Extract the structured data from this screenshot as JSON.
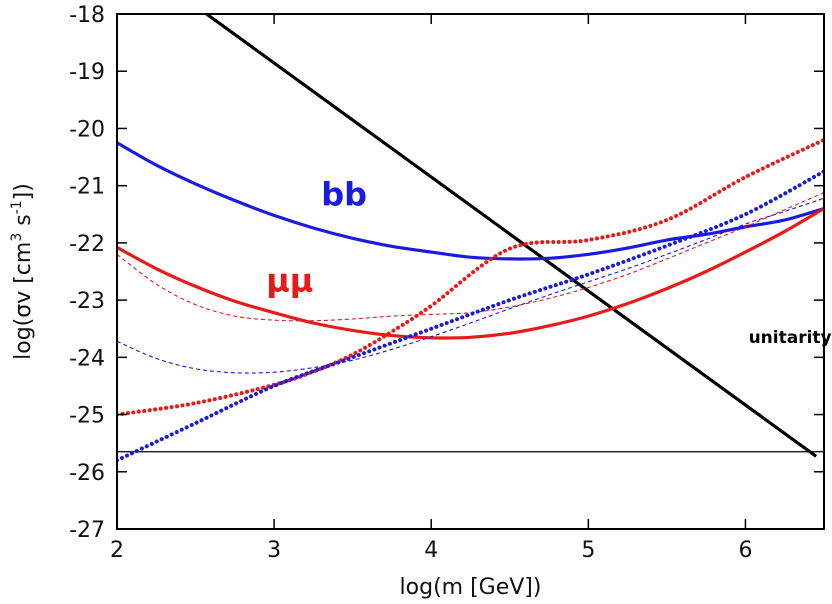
{
  "chart_data": {
    "type": "line",
    "title": "",
    "xlabel": "log(m [GeV])",
    "ylabel": {
      "prefix": "log(σv [cm",
      "sup1": "3",
      "mid": " s",
      "sup2": "-1",
      "suffix": "])"
    },
    "xlim": [
      2,
      6.5
    ],
    "ylim": [
      -27,
      -18
    ],
    "xticks": [
      {
        "value": 2,
        "label": "2"
      },
      {
        "value": 3,
        "label": "3"
      },
      {
        "value": 4,
        "label": "4"
      },
      {
        "value": 5,
        "label": "5"
      },
      {
        "value": 6,
        "label": "6"
      }
    ],
    "yticks": [
      {
        "value": -18,
        "label": "-18"
      },
      {
        "value": -19,
        "label": "-19"
      },
      {
        "value": -20,
        "label": "-20"
      },
      {
        "value": -21,
        "label": "-21"
      },
      {
        "value": -22,
        "label": "-22"
      },
      {
        "value": -23,
        "label": "-23"
      },
      {
        "value": -24,
        "label": "-24"
      },
      {
        "value": -25,
        "label": "-25"
      },
      {
        "value": -26,
        "label": "-26"
      },
      {
        "value": -27,
        "label": "-27"
      }
    ],
    "grid": false,
    "series": [
      {
        "name": "unitarity",
        "color": "#000000",
        "style": "solid-thick",
        "x": [
          2.57,
          6.45
        ],
        "y": [
          -18.0,
          -25.73
        ]
      },
      {
        "name": "reference-level",
        "color": "#000000",
        "style": "solid-thin",
        "x": [
          2.0,
          6.5
        ],
        "y": [
          -25.65,
          -25.65
        ]
      },
      {
        "name": "bb",
        "color": "#1a1ae0",
        "style": "solid-thick",
        "x": [
          2.0,
          2.25,
          2.5,
          2.75,
          3.0,
          3.25,
          3.5,
          3.75,
          4.0,
          4.25,
          4.5,
          4.75,
          5.0,
          5.25,
          5.5,
          5.75,
          6.0,
          6.25,
          6.5
        ],
        "y": [
          -20.25,
          -20.64,
          -20.97,
          -21.26,
          -21.52,
          -21.74,
          -21.92,
          -22.06,
          -22.16,
          -22.25,
          -22.28,
          -22.27,
          -22.2,
          -22.09,
          -21.95,
          -21.85,
          -21.72,
          -21.6,
          -21.4
        ]
      },
      {
        "name": "μμ",
        "color": "#e81a1a",
        "style": "solid-thick",
        "x": [
          2.0,
          2.25,
          2.5,
          2.75,
          3.0,
          3.25,
          3.5,
          3.75,
          4.0,
          4.25,
          4.5,
          4.75,
          5.0,
          5.25,
          5.5,
          5.75,
          6.0,
          6.25,
          6.5
        ],
        "y": [
          -22.08,
          -22.45,
          -22.76,
          -23.02,
          -23.22,
          -23.4,
          -23.53,
          -23.62,
          -23.66,
          -23.65,
          -23.58,
          -23.45,
          -23.28,
          -23.06,
          -22.8,
          -22.5,
          -22.16,
          -21.8,
          -21.4
        ]
      },
      {
        "name": "μμ-dashed",
        "color": "#e81a1a",
        "style": "dashed-thin",
        "x": [
          2.0,
          2.25,
          2.5,
          2.75,
          3.0,
          3.25,
          3.5,
          3.75,
          4.0,
          4.25,
          4.5,
          4.75,
          5.0,
          5.25,
          5.5,
          5.75,
          6.0,
          6.25,
          6.5
        ],
        "y": [
          -22.2,
          -22.72,
          -23.08,
          -23.28,
          -23.35,
          -23.36,
          -23.33,
          -23.28,
          -23.25,
          -23.22,
          -23.12,
          -22.97,
          -22.78,
          -22.55,
          -22.28,
          -22.0,
          -21.72,
          -21.42,
          -21.12
        ]
      },
      {
        "name": "bb-dashed",
        "color": "#1a1ae0",
        "style": "dashed-thin",
        "x": [
          2.0,
          2.25,
          2.5,
          2.75,
          3.0,
          3.25,
          3.5,
          3.75,
          4.0,
          4.25,
          4.5,
          4.75,
          5.0,
          5.25,
          5.5,
          5.75,
          6.0,
          6.25,
          6.5
        ],
        "y": [
          -23.72,
          -24.02,
          -24.2,
          -24.27,
          -24.26,
          -24.18,
          -24.05,
          -23.86,
          -23.64,
          -23.4,
          -23.15,
          -22.91,
          -22.68,
          -22.45,
          -22.2,
          -21.94,
          -21.67,
          -21.45,
          -21.22
        ]
      },
      {
        "name": "μμ-dotted",
        "color": "#e81a1a",
        "style": "dotted-thick",
        "x": [
          2.0,
          2.5,
          3.0,
          3.25,
          3.5,
          3.75,
          4.0,
          4.5,
          5.0,
          5.5,
          6.0,
          6.5
        ],
        "y": [
          -25.0,
          -24.8,
          -24.48,
          -24.25,
          -23.95,
          -23.55,
          -23.1,
          -22.1,
          -21.95,
          -21.6,
          -20.85,
          -20.2
        ]
      },
      {
        "name": "bb-dotted",
        "color": "#1a1ae0",
        "style": "dotted-thick",
        "x": [
          2.0,
          2.5,
          3.0,
          3.5,
          4.0,
          4.5,
          5.0,
          5.5,
          6.0,
          6.5
        ],
        "y": [
          -25.8,
          -25.15,
          -24.5,
          -24.0,
          -23.5,
          -23.0,
          -22.55,
          -22.05,
          -21.5,
          -20.75
        ]
      }
    ],
    "annotations": [
      {
        "text": "bb",
        "x": 3.3,
        "y": -21.35,
        "color": "#1a1ae0",
        "size": "large"
      },
      {
        "text": "μμ",
        "x": 2.95,
        "y": -22.85,
        "color": "#e81a1a",
        "size": "large"
      },
      {
        "text": "unitarity",
        "x": 6.02,
        "y": -23.75,
        "color": "#000000",
        "size": "small"
      }
    ]
  }
}
